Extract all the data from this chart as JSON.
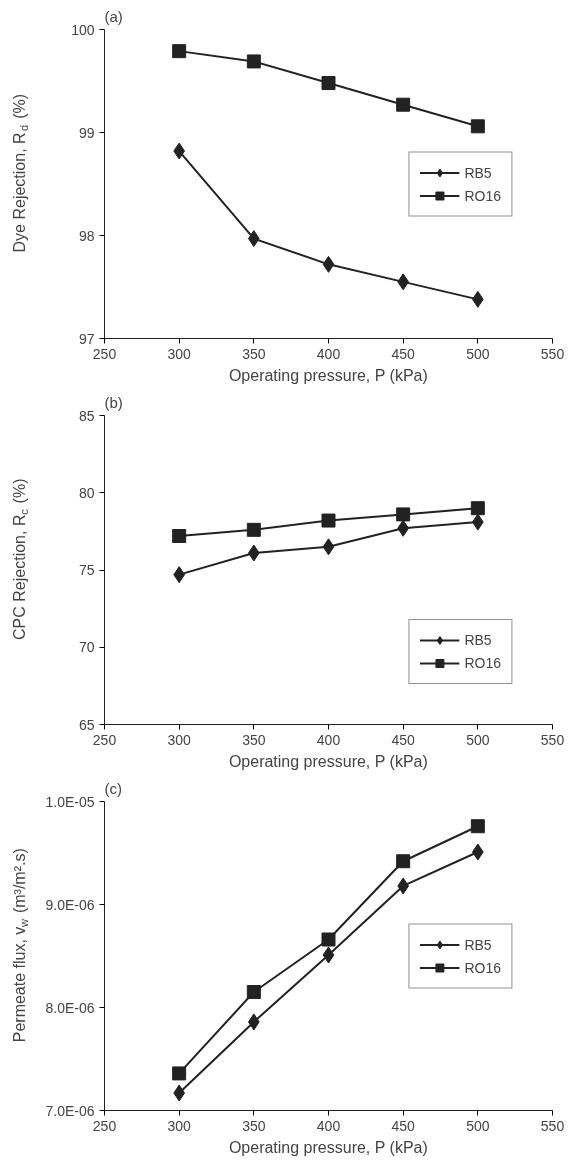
{
  "chart_data": [
    {
      "type": "line",
      "title": "(a)",
      "xlabel": "Operating pressure, P (kPa)",
      "ylabel": "Dye Rejection, R$_{d}$ (%)",
      "x": [
        300,
        350,
        400,
        450,
        500
      ],
      "xlim": [
        250,
        550
      ],
      "xticks": [
        250,
        300,
        350,
        400,
        450,
        500,
        550
      ],
      "ylim": [
        97,
        100
      ],
      "yticks": [
        97,
        98,
        99,
        100
      ],
      "grid": false,
      "legend": "center right",
      "series": [
        {
          "name": "RB5",
          "color": "#222222",
          "marker": "diamond",
          "values": [
            98.82,
            97.97,
            97.72,
            97.55,
            97.38
          ]
        },
        {
          "name": "RO16",
          "color": "#222222",
          "marker": "square",
          "values": [
            99.79,
            99.69,
            99.48,
            99.27,
            99.06
          ]
        }
      ]
    },
    {
      "type": "line",
      "title": "(b)",
      "xlabel": "Operating pressure, P (kPa)",
      "ylabel": "CPC Rejection, R$_{c}$ (%)",
      "x": [
        300,
        350,
        400,
        450,
        500
      ],
      "xlim": [
        250,
        550
      ],
      "xticks": [
        250,
        300,
        350,
        400,
        450,
        500,
        550
      ],
      "ylim": [
        65,
        85
      ],
      "yticks": [
        65,
        70,
        75,
        80,
        85
      ],
      "grid": false,
      "legend": "bottom right",
      "series": [
        {
          "name": "RB5",
          "color": "#222222",
          "marker": "diamond",
          "values": [
            74.7,
            76.1,
            76.5,
            77.7,
            78.1
          ]
        },
        {
          "name": "RO16",
          "color": "#222222",
          "marker": "square",
          "values": [
            77.2,
            77.6,
            78.2,
            78.6,
            79.0
          ]
        }
      ]
    },
    {
      "type": "line",
      "title": "(c)",
      "xlabel": "Operating pressure, P (kPa)",
      "ylabel": "Permeate flux, v$_{w}$ (m³/m².s)",
      "x": [
        300,
        350,
        400,
        450,
        500
      ],
      "xlim": [
        250,
        550
      ],
      "xticks": [
        250,
        300,
        350,
        400,
        450,
        500,
        550
      ],
      "ylim": [
        7e-06,
        1e-05
      ],
      "yticks": [
        {
          "value": 7e-06,
          "label": "7.0E-06"
        },
        {
          "value": 8e-06,
          "label": "8.0E-06"
        },
        {
          "value": 9e-06,
          "label": "9.0E-06"
        },
        {
          "value": 1e-05,
          "label": "1.0E-05"
        }
      ],
      "grid": false,
      "legend": "center right",
      "series": [
        {
          "name": "RB5",
          "color": "#222222",
          "marker": "diamond",
          "values": [
            7.17e-06,
            7.86e-06,
            8.51e-06,
            9.18e-06,
            9.51e-06
          ]
        },
        {
          "name": "RO16",
          "color": "#222222",
          "marker": "square",
          "values": [
            7.36e-06,
            8.15e-06,
            8.66e-06,
            9.42e-06,
            9.76e-06
          ]
        }
      ]
    }
  ]
}
